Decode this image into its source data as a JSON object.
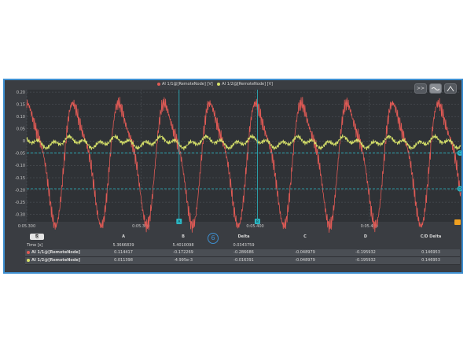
{
  "legend": [
    {
      "label": "AI 1/1@[RemoteNode] [V]",
      "color": "#e05a55"
    },
    {
      "label": "AI 1/2@[RemoteNode] [V]",
      "color": "#d8e36a"
    }
  ],
  "toolbar": {
    "zoom_label": ">>",
    "scale_icon": "waveform-icon",
    "auto_icon": "autoscale-icon"
  },
  "axis": {
    "y_ticks": [
      "0.20",
      "0.15",
      "0.10",
      "0.05",
      "0",
      "-0.05",
      "-0.10",
      "-0.15",
      "-0.20",
      "-0.25",
      "-0.30"
    ],
    "x_ticks": [
      "0:05.300",
      "0:05.350",
      "0:05.400",
      "0:05.450"
    ]
  },
  "chart_data": {
    "type": "line",
    "ylim": [
      -0.33,
      0.21
    ],
    "xlim": [
      5.3,
      5.49
    ],
    "y_ticks": [
      0.2,
      0.15,
      0.1,
      0.05,
      0,
      -0.05,
      -0.1,
      -0.15,
      -0.2,
      -0.25,
      -0.3
    ],
    "x_ticks": [
      5.3,
      5.35,
      5.4,
      5.45
    ],
    "grid": true,
    "legend_position": "top-center",
    "series": [
      {
        "name": "AI 1/1@[RemoteNode] [V]",
        "color": "#e05a55",
        "amplitude": 0.25,
        "offset": -0.07,
        "frequency_hz": 50
      },
      {
        "name": "AI 1/2@[RemoteNode] [V]",
        "color": "#d8e36a",
        "amplitude": 0.022,
        "offset": -0.005,
        "frequency_hz": 50
      }
    ],
    "cursors": {
      "A": {
        "x": 5.3667,
        "label": "A"
      },
      "B": {
        "x": 5.401,
        "label": "B"
      },
      "C": {
        "y": -0.049,
        "label": "C"
      },
      "D": {
        "y": -0.195,
        "label": "D"
      }
    }
  },
  "table": {
    "copy_label": "⎘",
    "badge": "6",
    "headers": [
      "A",
      "B",
      "Delta",
      "C",
      "D",
      "C/D Delta"
    ],
    "time_row": {
      "label": "Time [s]",
      "values": [
        "5.3666839",
        "5.4010098",
        "0.0343759",
        "",
        "",
        ""
      ]
    },
    "rows": [
      {
        "label": "AI 1/1@[RemoteNode]",
        "color": "#e05a55",
        "values": [
          "0.114417",
          "-0.172269",
          "-0.286686",
          "-0.048979",
          "-0.195932",
          "0.146953"
        ]
      },
      {
        "label": "AI 1/2@[RemoteNode]",
        "color": "#d8e36a",
        "values": [
          "0.011398",
          "-4.995e-3",
          "-0.016391",
          "-0.048979",
          "-0.195932",
          "0.146953"
        ]
      }
    ]
  }
}
